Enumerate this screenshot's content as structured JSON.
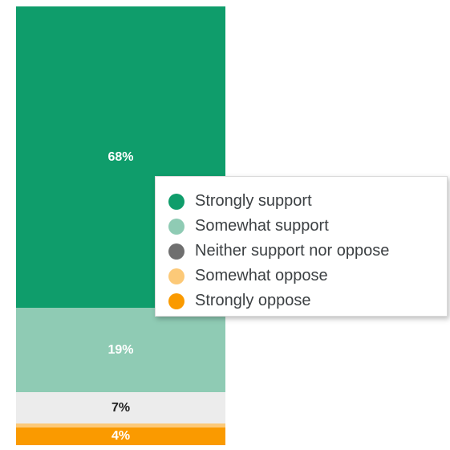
{
  "chart_data": {
    "type": "bar",
    "stacked": true,
    "orientation": "vertical",
    "categories": [
      ""
    ],
    "series": [
      {
        "name": "Strongly support",
        "values": [
          68
        ],
        "label": "68%",
        "color": "#0f9d6b",
        "label_color": "#ffffff"
      },
      {
        "name": "Somewhat support",
        "values": [
          19
        ],
        "label": "19%",
        "color": "#8fcbb4",
        "label_color": "#ffffff"
      },
      {
        "name": "Neither support nor oppose",
        "values": [
          7
        ],
        "label": "7%",
        "color": "#ececec",
        "label_color": "#222222"
      },
      {
        "name": "Somewhat oppose",
        "values": [
          1
        ],
        "label": "",
        "color": "#fcc978",
        "label_color": "#ffffff"
      },
      {
        "name": "Strongly oppose",
        "values": [
          4
        ],
        "label": "4%",
        "color": "#fa9a00",
        "label_color": "#ffffff"
      }
    ],
    "legend": {
      "position": "right",
      "entries": [
        {
          "label": "Strongly support",
          "color": "#0f9d6b"
        },
        {
          "label": "Somewhat support",
          "color": "#8fcbb4"
        },
        {
          "label": "Neither support nor oppose",
          "color": "#6f6f6f"
        },
        {
          "label": "Somewhat oppose",
          "color": "#fcc978"
        },
        {
          "label": "Strongly oppose",
          "color": "#fa9a00"
        }
      ]
    },
    "ylim": [
      0,
      100
    ],
    "grid": false
  }
}
